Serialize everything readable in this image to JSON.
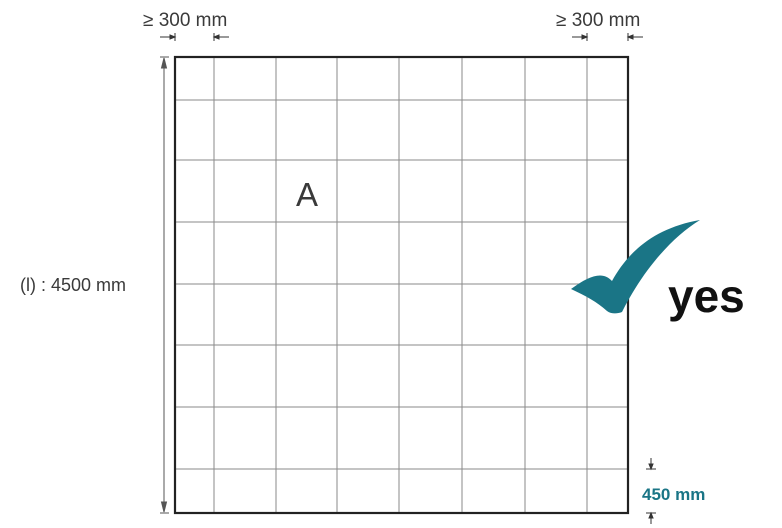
{
  "labels": {
    "top_left_dimension": "≥ 300 mm",
    "top_right_dimension": "≥ 300 mm",
    "height_dimension": "(l) : 4500 mm",
    "area_label": "A",
    "verdict": "yes",
    "bottom_dimension": "450 mm"
  },
  "colors": {
    "checkmark": "#1a7586",
    "highlight_text": "#1a7586",
    "grid_lines": "#8a8a8a",
    "frame": "#222222"
  },
  "icons": {
    "verdict_icon": "checkmark-icon"
  }
}
